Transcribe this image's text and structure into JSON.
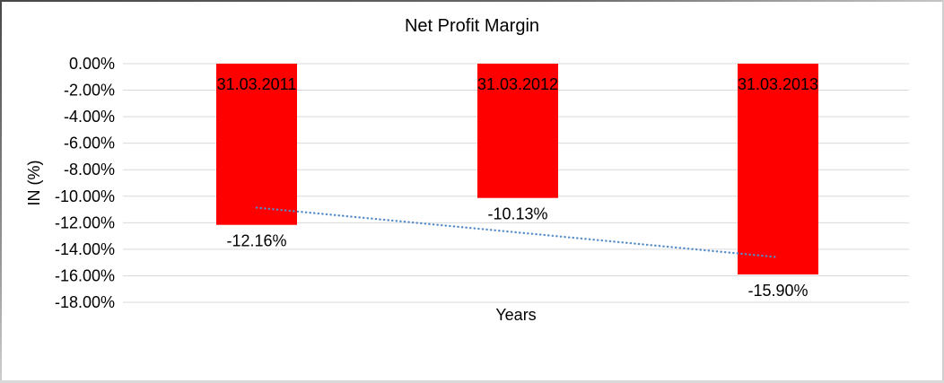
{
  "chart_data": {
    "type": "bar",
    "title": "Net Profit Margin",
    "xlabel": "Years",
    "ylabel": "IN (%)",
    "categories": [
      "31.03.2011",
      "31.03.2012",
      "31.03.2013"
    ],
    "values": [
      -12.16,
      -10.13,
      -15.9
    ],
    "value_labels": [
      "-12.16%",
      "-10.13%",
      "-15.90%"
    ],
    "y_ticks": [
      "0.00%",
      "-2.00%",
      "-4.00%",
      "-6.00%",
      "-8.00%",
      "-10.00%",
      "-12.00%",
      "-14.00%",
      "-16.00%",
      "-18.00%"
    ],
    "y_tick_values": [
      0,
      -2,
      -4,
      -6,
      -8,
      -10,
      -12,
      -14,
      -16,
      -18
    ],
    "ylim": [
      -18,
      0
    ],
    "grid": true,
    "legend": "none",
    "bar_color": "#FF0000",
    "gridline_color": "#D9D9D9",
    "text_color": "#000000",
    "trendline": {
      "type": "linear",
      "style": "dotted",
      "color": "#548BC9",
      "start_value": -10.86,
      "end_value": -14.6
    }
  }
}
